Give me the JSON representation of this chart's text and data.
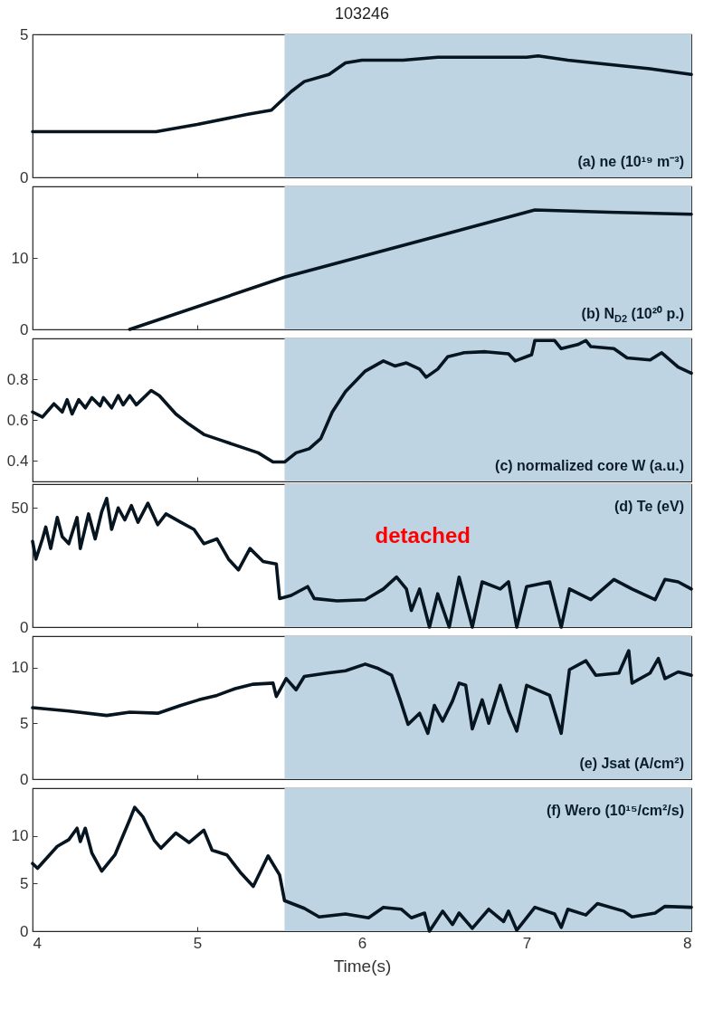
{
  "chart_data": [
    {
      "type": "line",
      "title": "103246",
      "color": "#061520",
      "xlim": [
        4,
        8
      ],
      "xticks": [
        4,
        5,
        6,
        7,
        8
      ],
      "ylim": [
        0,
        5
      ],
      "yticks": [
        0,
        5
      ],
      "tick_labels": "y",
      "annotations": [
        "(a) ne (10¹⁹ m⁻³)"
      ],
      "bands": [
        {
          "axis": "x",
          "from": 5.53,
          "to": 8,
          "color": "#bfd4e2"
        }
      ],
      "x": [
        4,
        4.4,
        4.75,
        5.0,
        5.3,
        5.45,
        5.57,
        5.65,
        5.8,
        5.9,
        6.0,
        6.25,
        6.46,
        7.0,
        7.07,
        7.25,
        7.5,
        7.75,
        8
      ],
      "values": [
        1.6,
        1.6,
        1.6,
        1.85,
        2.2,
        2.35,
        3.0,
        3.35,
        3.6,
        4.0,
        4.1,
        4.1,
        4.2,
        4.2,
        4.25,
        4.1,
        3.95,
        3.8,
        3.6
      ]
    },
    {
      "type": "line",
      "color": "#061520",
      "xlim": [
        4,
        8
      ],
      "xticks": [
        4,
        5,
        6,
        7,
        8
      ],
      "ylim": [
        0,
        20
      ],
      "yticks": [
        0,
        10
      ],
      "tick_labels": "y",
      "annotations": [
        "(b) N$_{D2}$ (10²⁰ p.)"
      ],
      "bands": [
        {
          "axis": "x",
          "from": 5.53,
          "to": 8,
          "color": "#bfd4e2"
        }
      ],
      "x": [
        4.59,
        5.53,
        7.05,
        7.5,
        8
      ],
      "values": [
        0,
        7.3,
        16.7,
        16.4,
        16.1
      ]
    },
    {
      "type": "line",
      "color": "#061520",
      "xlim": [
        4,
        8
      ],
      "xticks": [
        4,
        5,
        6,
        7,
        8
      ],
      "ylim": [
        0.3,
        1.0
      ],
      "yticks": [
        0.4,
        0.6,
        0.8
      ],
      "tick_labels": "y",
      "annotations": [
        "(c) normalized core W (a.u.)"
      ],
      "bands": [
        {
          "axis": "x",
          "from": 5.53,
          "to": 8,
          "color": "#bfd4e2"
        }
      ],
      "x": [
        4.0,
        4.06,
        4.13,
        4.18,
        4.21,
        4.24,
        4.28,
        4.32,
        4.36,
        4.41,
        4.43,
        4.48,
        4.52,
        4.55,
        4.59,
        4.63,
        4.72,
        4.77,
        4.87,
        4.95,
        5.04,
        5.15,
        5.26,
        5.37,
        5.46,
        5.53,
        5.6,
        5.68,
        5.75,
        5.82,
        5.9,
        6.02,
        6.13,
        6.2,
        6.27,
        6.35,
        6.39,
        6.46,
        6.52,
        6.62,
        6.75,
        6.89,
        6.93,
        7.03,
        7.05,
        7.17,
        7.21,
        7.31,
        7.36,
        7.39,
        7.53,
        7.61,
        7.75,
        7.82,
        7.92,
        8.0
      ],
      "values": [
        0.64,
        0.615,
        0.68,
        0.64,
        0.7,
        0.63,
        0.7,
        0.66,
        0.71,
        0.67,
        0.71,
        0.66,
        0.72,
        0.675,
        0.72,
        0.675,
        0.745,
        0.72,
        0.63,
        0.58,
        0.53,
        0.5,
        0.47,
        0.44,
        0.395,
        0.395,
        0.44,
        0.46,
        0.51,
        0.64,
        0.74,
        0.84,
        0.89,
        0.865,
        0.88,
        0.85,
        0.81,
        0.85,
        0.91,
        0.93,
        0.935,
        0.925,
        0.89,
        0.92,
        0.99,
        0.99,
        0.95,
        0.97,
        0.99,
        0.96,
        0.95,
        0.905,
        0.895,
        0.93,
        0.86,
        0.83
      ]
    },
    {
      "type": "line",
      "color": "#061520",
      "xlim": [
        4,
        8
      ],
      "xticks": [
        4,
        5,
        6,
        7,
        8
      ],
      "ylim": [
        0,
        60
      ],
      "yticks": [
        0,
        50
      ],
      "tick_labels": "y",
      "annotations": [
        "(d) Te (eV)"
      ],
      "bands": [
        {
          "axis": "x",
          "from": 5.53,
          "to": 8,
          "color": "#bfd4e2",
          "label": "detached"
        }
      ],
      "x": [
        4.0,
        4.02,
        4.06,
        4.08,
        4.11,
        4.15,
        4.18,
        4.22,
        4.27,
        4.29,
        4.34,
        4.38,
        4.42,
        4.45,
        4.48,
        4.52,
        4.56,
        4.6,
        4.64,
        4.7,
        4.76,
        4.81,
        4.9,
        4.98,
        5.04,
        5.12,
        5.19,
        5.25,
        5.32,
        5.4,
        5.48,
        5.5,
        5.57,
        5.67,
        5.71,
        5.85,
        6.02,
        6.13,
        6.21,
        6.27,
        6.3,
        6.35,
        6.41,
        6.46,
        6.53,
        6.59,
        6.67,
        6.73,
        6.84,
        6.89,
        6.94,
        7.0,
        7.14,
        7.21,
        7.26,
        7.39,
        7.53,
        7.64,
        7.78,
        7.84,
        7.92,
        8.0
      ],
      "values": [
        36,
        28.5,
        37,
        42,
        33,
        46,
        38,
        35,
        46,
        33,
        47.5,
        37,
        48.5,
        54,
        41,
        50,
        45,
        51,
        44,
        52,
        43,
        47.5,
        44,
        41,
        35,
        37,
        28.5,
        24,
        33,
        27.5,
        26.5,
        12,
        13.3,
        17,
        12,
        11,
        11.5,
        16,
        21,
        16,
        7,
        16,
        0,
        14,
        0,
        21,
        0,
        19,
        16,
        19,
        0,
        17,
        19,
        0,
        16,
        11.5,
        20,
        16,
        11.5,
        20,
        19,
        16
      ]
    },
    {
      "type": "line",
      "color": "#061520",
      "xlim": [
        4,
        8
      ],
      "xticks": [
        4,
        5,
        6,
        7,
        8
      ],
      "ylim": [
        0,
        12.8
      ],
      "yticks": [
        0,
        5,
        10
      ],
      "tick_labels": "y",
      "annotations": [
        "(e) Jsat (A/cm²)"
      ],
      "bands": [
        {
          "axis": "x",
          "from": 5.53,
          "to": 8,
          "color": "#bfd4e2"
        }
      ],
      "x": [
        4.0,
        4.22,
        4.45,
        4.59,
        4.76,
        4.9,
        5.01,
        5.12,
        5.23,
        5.34,
        5.46,
        5.48,
        5.54,
        5.6,
        5.65,
        5.79,
        5.9,
        6.02,
        6.1,
        6.18,
        6.23,
        6.28,
        6.35,
        6.4,
        6.44,
        6.49,
        6.55,
        6.59,
        6.63,
        6.67,
        6.73,
        6.77,
        6.84,
        6.89,
        6.94,
        7.0,
        7.14,
        7.21,
        7.26,
        7.36,
        7.42,
        7.56,
        7.62,
        7.64,
        7.75,
        7.8,
        7.84,
        7.92,
        8.0
      ],
      "values": [
        6.4,
        6.1,
        5.7,
        6,
        5.9,
        6.6,
        7.1,
        7.5,
        8.1,
        8.5,
        8.6,
        7.4,
        9,
        8,
        9.2,
        9.5,
        9.7,
        10.3,
        9.9,
        9.3,
        7.2,
        4.9,
        5.9,
        4.1,
        6.6,
        5.2,
        7,
        8.6,
        8.4,
        4.5,
        7.1,
        5,
        8.4,
        6.1,
        4.3,
        8.4,
        7.5,
        4.1,
        9.8,
        10.6,
        9.3,
        9.5,
        11.5,
        8.6,
        9.5,
        10.8,
        9,
        9.6,
        9.3
      ]
    },
    {
      "type": "line",
      "color": "#061520",
      "xlim": [
        4,
        8
      ],
      "xticks": [
        4,
        5,
        6,
        7,
        8
      ],
      "ylim": [
        0,
        15
      ],
      "yticks": [
        0,
        5,
        10
      ],
      "xlabel": "Time(s)",
      "annotations": [
        "(f) Wero (10¹⁵/cm²/s)"
      ],
      "bands": [
        {
          "axis": "x",
          "from": 5.53,
          "to": 8,
          "color": "#bfd4e2"
        }
      ],
      "x": [
        4.0,
        4.03,
        4.15,
        4.22,
        4.27,
        4.29,
        4.32,
        4.36,
        4.42,
        4.5,
        4.59,
        4.62,
        4.67,
        4.74,
        4.78,
        4.87,
        4.95,
        5.04,
        5.09,
        5.18,
        5.26,
        5.34,
        5.43,
        5.5,
        5.53,
        5.65,
        5.74,
        5.9,
        6.04,
        6.13,
        6.24,
        6.3,
        6.38,
        6.41,
        6.49,
        6.55,
        6.59,
        6.67,
        6.77,
        6.86,
        6.89,
        6.94,
        7.05,
        7.17,
        7.21,
        7.25,
        7.36,
        7.43,
        7.59,
        7.64,
        7.78,
        7.84,
        8.0
      ],
      "values": [
        7.1,
        6.6,
        8.9,
        9.6,
        10.8,
        9.4,
        10.8,
        8.2,
        6.3,
        8,
        11.7,
        13,
        12,
        9.5,
        8.7,
        10.3,
        9.3,
        10.6,
        8.5,
        8,
        6.2,
        4.7,
        7.9,
        5.9,
        3.2,
        2.4,
        1.5,
        1.8,
        1.4,
        2.5,
        2.3,
        1.4,
        1.9,
        0,
        2.1,
        0.7,
        1.9,
        0.3,
        2.3,
        1,
        2.1,
        0.1,
        2.5,
        1.8,
        0.4,
        2.3,
        1.7,
        2.9,
        2.1,
        1.5,
        1.9,
        2.6,
        2.5
      ]
    }
  ]
}
